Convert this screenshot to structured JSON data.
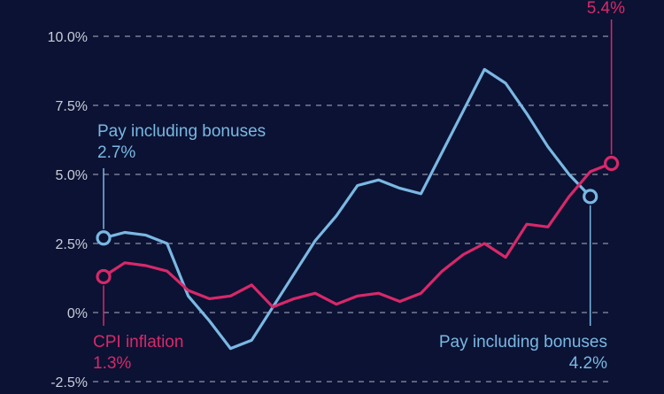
{
  "colors": {
    "background": "#0b1233",
    "pay": "#7ab8e3",
    "cpi": "#d8286a",
    "grid": "#8c93a8",
    "tick_text": "#c9cdd8"
  },
  "chart_data": {
    "type": "line",
    "ylim": [
      -2.5,
      10.0
    ],
    "y_ticks": [
      -2.5,
      0,
      2.5,
      5.0,
      7.5,
      10.0
    ],
    "y_tick_labels": [
      "-2.5%",
      "0%",
      "2.5%",
      "5.0%",
      "7.5%",
      "10.0%"
    ],
    "grid": "horizontal dashed",
    "series": [
      {
        "key": "pay",
        "name": "Pay including bonuses",
        "color": "#7ab8e3",
        "values": [
          2.7,
          2.9,
          2.8,
          2.5,
          0.6,
          -0.3,
          -1.3,
          -1.0,
          0.2,
          1.4,
          2.6,
          3.5,
          4.6,
          4.8,
          4.5,
          4.3,
          5.8,
          7.3,
          8.8,
          8.3,
          7.2,
          6.0,
          5.0,
          4.2
        ]
      },
      {
        "key": "cpi",
        "name": "CPI inflation",
        "color": "#d8286a",
        "values": [
          1.3,
          1.8,
          1.7,
          1.5,
          0.8,
          0.5,
          0.6,
          1.0,
          0.2,
          0.5,
          0.7,
          0.3,
          0.6,
          0.7,
          0.4,
          0.7,
          1.5,
          2.1,
          2.5,
          2.0,
          3.2,
          3.1,
          4.2,
          5.1,
          5.4
        ]
      }
    ],
    "annotations": {
      "pay_start": {
        "label": "Pay including bonuses",
        "value_text": "2.7%"
      },
      "pay_end": {
        "label": "Pay including bonuses",
        "value_text": "4.2%"
      },
      "cpi_start": {
        "label": "CPI inflation",
        "value_text": "1.3%"
      },
      "cpi_end": {
        "value_text": "5.4%"
      }
    }
  }
}
